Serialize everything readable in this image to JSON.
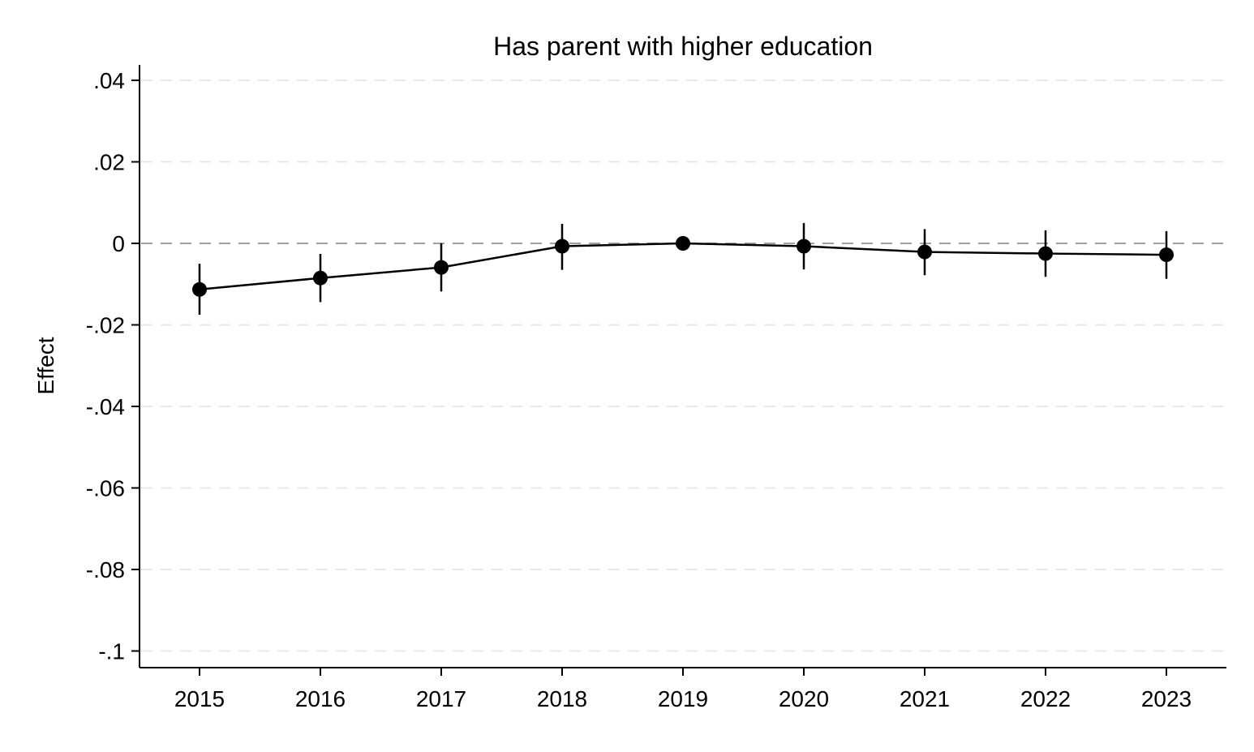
{
  "chart_data": {
    "type": "line",
    "title": "Has parent with higher education",
    "xlabel": "",
    "ylabel": "Effect",
    "x": [
      2015,
      2016,
      2017,
      2018,
      2019,
      2020,
      2021,
      2022,
      2023
    ],
    "x_tick_labels": [
      "2015",
      "2016",
      "2017",
      "2018",
      "2019",
      "2020",
      "2021",
      "2022",
      "2023"
    ],
    "y_ticks": [
      0.04,
      0.02,
      0,
      -0.02,
      -0.04,
      -0.06,
      -0.08,
      -0.1
    ],
    "y_tick_labels": [
      ".04",
      ".02",
      "0",
      "-.02",
      "-.04",
      "-.06",
      "-.08",
      "-.1"
    ],
    "ylim": [
      -0.104,
      0.044
    ],
    "xlim": [
      2014.5,
      2023.5
    ],
    "series": [
      {
        "values": [
          -0.0113,
          -0.0085,
          -0.0059,
          -0.0007,
          0.0,
          -0.0007,
          -0.0021,
          -0.0025,
          -0.0028
        ],
        "ci_lower": [
          -0.0175,
          -0.0144,
          -0.0118,
          -0.0065,
          0.0,
          -0.0064,
          -0.0078,
          -0.0082,
          -0.0087
        ],
        "ci_upper": [
          -0.005,
          -0.0026,
          0.0,
          0.0048,
          0.0,
          0.005,
          0.0035,
          0.0032,
          0.003
        ]
      }
    ],
    "reference_line": 0,
    "grid": "horizontal-dashed",
    "colors": {
      "line": "#000000",
      "marker": "#000000",
      "grid": "#e8e8e8",
      "reference": "#a0a0a0"
    }
  }
}
